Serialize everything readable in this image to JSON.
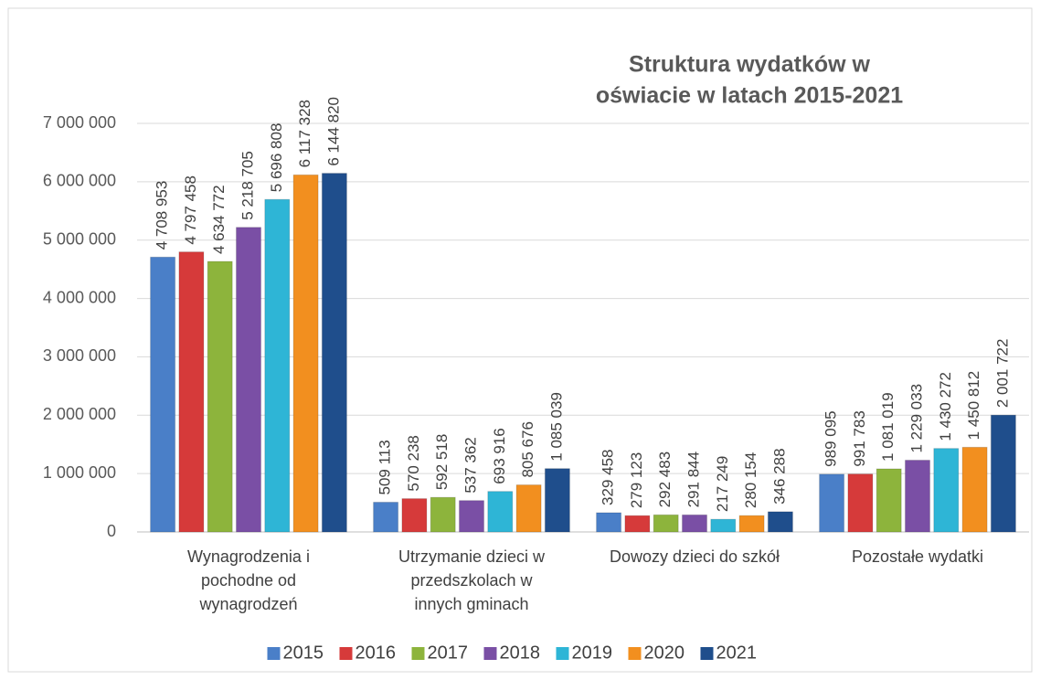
{
  "chart_data": {
    "type": "bar",
    "title": [
      "Struktura wydatków w",
      "oświacie w latach 2015-2021"
    ],
    "categories": [
      [
        "Wynagrodzenia i",
        "pochodne od",
        "wynagrodzeń"
      ],
      [
        "Utrzymanie dzieci w",
        "przedszkolach w",
        "innych gminach"
      ],
      [
        "Dowozy dzieci do szkół"
      ],
      [
        "Pozostałe wydatki"
      ]
    ],
    "series": [
      {
        "name": "2015",
        "color": "#4a7fc8",
        "values": [
          4708953,
          509113,
          329458,
          989095
        ],
        "value_labels": [
          "4 708 953",
          "509 113",
          "329 458",
          "989 095"
        ]
      },
      {
        "name": "2016",
        "color": "#d63a3a",
        "values": [
          4797458,
          570238,
          279123,
          991783
        ],
        "value_labels": [
          "4 797 458",
          "570 238",
          "279 123",
          "991 783"
        ]
      },
      {
        "name": "2017",
        "color": "#8db43c",
        "values": [
          4634772,
          592518,
          292483,
          1081019
        ],
        "value_labels": [
          "4 634 772",
          "592 518",
          "292 483",
          "1 081 019"
        ]
      },
      {
        "name": "2018",
        "color": "#7a4fa5",
        "values": [
          5218705,
          537362,
          291844,
          1229033
        ],
        "value_labels": [
          "5 218 705",
          "537 362",
          "291 844",
          "1 229 033"
        ]
      },
      {
        "name": "2019",
        "color": "#2eb5d6",
        "values": [
          5696808,
          693916,
          217249,
          1430272
        ],
        "value_labels": [
          "5 696 808",
          "693 916",
          "217 249",
          "1 430 272"
        ]
      },
      {
        "name": "2020",
        "color": "#f28f1f",
        "values": [
          6117328,
          805676,
          280154,
          1450812
        ],
        "value_labels": [
          "6 117 328",
          "805 676",
          "280 154",
          "1 450 812"
        ]
      },
      {
        "name": "2021",
        "color": "#1f4e8c",
        "values": [
          6144820,
          1085039,
          346288,
          2001722
        ],
        "value_labels": [
          "6 144 820",
          "1 085 039",
          "346 288",
          "2 001 722"
        ]
      }
    ],
    "ylim": [
      0,
      7000000
    ],
    "yticks": [
      0,
      {
        "value": 1000000,
        "label": "1 000 000"
      },
      {
        "value": 2000000,
        "label": "2 000 000"
      },
      {
        "value": 3000000,
        "label": "3 000 000"
      },
      {
        "value": 4000000,
        "label": "4 000 000"
      },
      {
        "value": 5000000,
        "label": "5 000 000"
      },
      {
        "value": 6000000,
        "label": "6 000 000"
      },
      {
        "value": 7000000,
        "label": "7 000 000"
      }
    ],
    "grid": true,
    "legend": "bottom"
  }
}
